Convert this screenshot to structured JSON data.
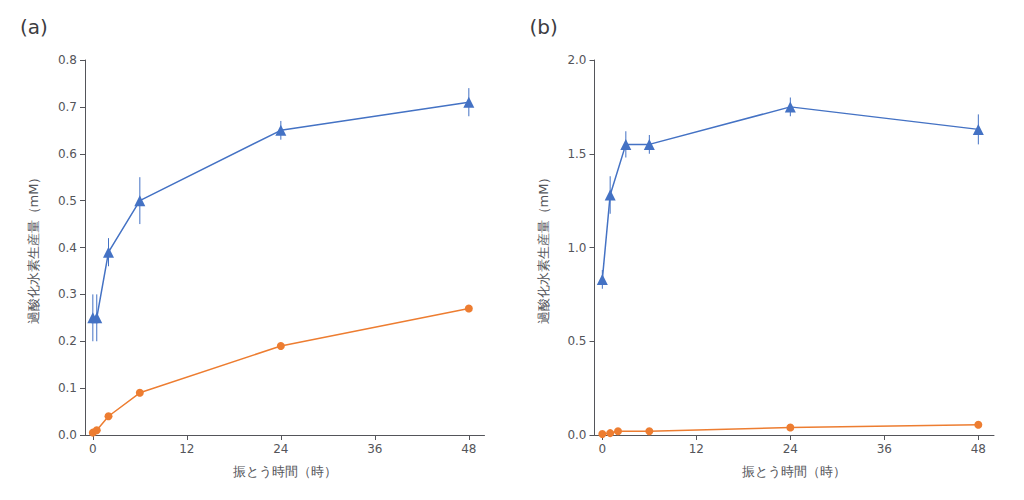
{
  "chart_data": [
    {
      "type": "line",
      "title": "(a)",
      "xlabel": "振とう時間（時）",
      "ylabel": "過酸化水素生産量（mM）",
      "xlim": [
        -1,
        50
      ],
      "xticks": [
        0,
        12,
        24,
        36,
        48
      ],
      "ylim": [
        0,
        0.8
      ],
      "yticks": [
        {
          "value": 0,
          "label": "0.0"
        },
        0.1,
        0.2,
        0.3,
        0.4,
        0.5,
        0.6,
        0.7,
        0.8
      ],
      "grid": false,
      "series": [
        {
          "color": "#ED7D31",
          "marker": "circle",
          "x": [
            0,
            0.5,
            2,
            6,
            24,
            48
          ],
          "values": [
            0.005,
            0.01,
            0.04,
            0.09,
            0.19,
            0.27
          ],
          "yerr": [
            0.002,
            0.002,
            0.005,
            0.005,
            0.008,
            0.005
          ]
        },
        {
          "color": "#4472C4",
          "marker": "triangle",
          "x": [
            0,
            0.5,
            2,
            6,
            24,
            48
          ],
          "values": [
            0.25,
            0.25,
            0.39,
            0.5,
            0.65,
            0.71
          ],
          "yerr": [
            0.05,
            0.05,
            0.03,
            0.05,
            0.02,
            0.03
          ]
        }
      ]
    },
    {
      "type": "line",
      "title": "(b)",
      "xlabel": "振とう時間（時）",
      "ylabel": "過酸化水素生産量（mM）",
      "xlim": [
        -1,
        50
      ],
      "xticks": [
        0,
        12,
        24,
        36,
        48
      ],
      "ylim": [
        0,
        2.0
      ],
      "yticks": [
        {
          "value": 0,
          "label": "0.0"
        },
        0.5,
        {
          "value": 1.0,
          "label": "1.0"
        },
        1.5,
        {
          "value": 2.0,
          "label": "2.0"
        }
      ],
      "grid": false,
      "series": [
        {
          "color": "#ED7D31",
          "marker": "circle",
          "x": [
            0,
            1,
            2,
            6,
            24,
            48
          ],
          "values": [
            0.005,
            0.01,
            0.02,
            0.02,
            0.04,
            0.055
          ],
          "yerr": [
            0.002,
            0.002,
            0.003,
            0.003,
            0.005,
            0.005
          ]
        },
        {
          "color": "#4472C4",
          "marker": "triangle",
          "x": [
            0,
            1,
            3,
            6,
            24,
            48
          ],
          "values": [
            0.83,
            1.28,
            1.55,
            1.55,
            1.75,
            1.63
          ],
          "yerr": [
            0.05,
            0.1,
            0.07,
            0.05,
            0.05,
            0.08
          ]
        }
      ]
    }
  ]
}
